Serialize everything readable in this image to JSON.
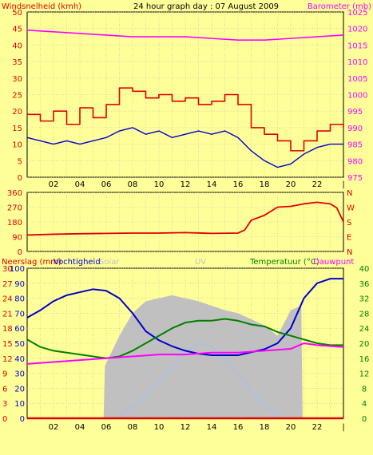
{
  "title": "24 hour graph day : 07 August 2009",
  "colors": {
    "background": "#FFFF99",
    "wind": "#E00000",
    "gust_line": "#0000CC",
    "barometer": "#FF00FF",
    "direction": "#E00000",
    "rain": "#E00000",
    "humidity": "#0000CC",
    "solar": "#C0C0C0",
    "uv": "#A0C0F0",
    "temperature": "#008000",
    "dewpoint": "#FF00FF",
    "left_axis": "#E00000",
    "humidity_axis": "#0000CC",
    "solar_label": "#C0C0C0",
    "uv_label": "#C0C0C0",
    "temp_axis": "#008000",
    "baro_axis": "#FF00FF"
  },
  "chart_data": [
    {
      "type": "line",
      "title": "24 hour graph day : 07 August 2009",
      "ylabel_left": "Windsnelheid (kmh)",
      "ylabel_right": "Barometer (mb)",
      "x_ticks": [
        "02",
        "04",
        "06",
        "08",
        "10",
        "12",
        "14",
        "16",
        "18",
        "20",
        "22"
      ],
      "y_ticks_left": [
        0,
        5,
        10,
        15,
        20,
        25,
        30,
        35,
        40,
        45,
        50
      ],
      "y_ticks_right": [
        975,
        980,
        985,
        990,
        995,
        1000,
        1005,
        1010,
        1015,
        1020,
        1025
      ],
      "ylim_left": [
        0,
        50
      ],
      "ylim_right": [
        975,
        1025
      ],
      "x_range": [
        0,
        24
      ],
      "series": [
        {
          "name": "Windsnelheid (kmh)",
          "axis": "left",
          "step": true,
          "x": [
            0,
            1,
            2,
            3,
            4,
            5,
            6,
            7,
            8,
            9,
            10,
            11,
            12,
            13,
            14,
            15,
            16,
            17,
            18,
            19,
            20,
            21,
            22,
            23,
            24
          ],
          "y": [
            19,
            17,
            20,
            16,
            21,
            18,
            22,
            27,
            26,
            24,
            25,
            23,
            24,
            22,
            23,
            25,
            22,
            15,
            13,
            11,
            8,
            11,
            14,
            16,
            15
          ]
        },
        {
          "name": "",
          "axis": "left",
          "x": [
            0,
            1,
            2,
            3,
            4,
            5,
            6,
            7,
            8,
            9,
            10,
            11,
            12,
            13,
            14,
            15,
            16,
            17,
            18,
            19,
            20,
            21,
            22,
            23,
            24
          ],
          "y": [
            12,
            11,
            10,
            11,
            10,
            11,
            12,
            14,
            15,
            13,
            14,
            12,
            13,
            14,
            13,
            14,
            12,
            8,
            5,
            3,
            4,
            7,
            9,
            10,
            10
          ]
        },
        {
          "name": "Barometer (mb)",
          "axis": "right",
          "x": [
            0,
            2,
            4,
            6,
            8,
            10,
            12,
            14,
            16,
            18,
            20,
            22,
            24
          ],
          "y": [
            1019.5,
            1019,
            1018.5,
            1018,
            1017.5,
            1017.5,
            1017.5,
            1017,
            1016.5,
            1016.5,
            1017,
            1017.5,
            1018
          ]
        }
      ]
    },
    {
      "type": "line",
      "title": "",
      "y_ticks_left": [
        0,
        90,
        180,
        270,
        360
      ],
      "y_ticks_right": [
        "N",
        "W",
        "S",
        "E",
        "N"
      ],
      "ylim_left": [
        0,
        360
      ],
      "x_range": [
        0,
        24
      ],
      "series": [
        {
          "name": "",
          "x": [
            0,
            2,
            4,
            6,
            8,
            10,
            12,
            14,
            16,
            16.5,
            17,
            18,
            19,
            20,
            21,
            22,
            23,
            23.5,
            24
          ],
          "y": [
            100,
            105,
            108,
            110,
            112,
            112,
            115,
            110,
            112,
            130,
            190,
            220,
            270,
            275,
            290,
            300,
            290,
            265,
            180
          ]
        }
      ]
    },
    {
      "type": "line",
      "title": "",
      "legend": [
        "Neerslag (mm)",
        "Vochtigheid",
        "Solar",
        "UV",
        "Temperatuur (°C)",
        "Dauwpunt"
      ],
      "x_ticks": [
        "02",
        "04",
        "06",
        "08",
        "10",
        "12",
        "14",
        "16",
        "18",
        "20",
        "22"
      ],
      "y_ticks_rain": [
        0,
        3,
        6,
        9,
        12,
        15,
        18,
        21,
        24,
        27,
        30
      ],
      "y_ticks_humidity": [
        0,
        10,
        20,
        30,
        40,
        50,
        60,
        70,
        80,
        90,
        100
      ],
      "y_ticks_temp": [
        0,
        4,
        8,
        12,
        16,
        20,
        24,
        28,
        32,
        36,
        40
      ],
      "ylim_rain": [
        0,
        30
      ],
      "ylim_humidity": [
        0,
        100
      ],
      "ylim_temp": [
        0,
        40
      ],
      "x_range": [
        0,
        24
      ],
      "series": [
        {
          "name": "Neerslag (mm)",
          "axis": "rain",
          "x": [
            0,
            24
          ],
          "y": [
            0,
            0
          ]
        },
        {
          "name": "Vochtigheid",
          "axis": "humidity",
          "x": [
            0,
            1,
            2,
            3,
            4,
            5,
            6,
            7,
            8,
            9,
            10,
            11,
            12,
            13,
            14,
            15,
            16,
            17,
            18,
            19,
            20,
            21,
            22,
            23,
            24
          ],
          "y": [
            67,
            72,
            78,
            82,
            84,
            86,
            85,
            80,
            70,
            58,
            52,
            48,
            45,
            43,
            42,
            42,
            42,
            44,
            46,
            50,
            60,
            80,
            90,
            93,
            93
          ]
        },
        {
          "name": "Solar",
          "axis": "humidity",
          "x": [
            0,
            5.8,
            5.9,
            7,
            8,
            9,
            10,
            11,
            12,
            13,
            14,
            15,
            16,
            17,
            18,
            19,
            20,
            20.8,
            20.9,
            24
          ],
          "y": [
            0,
            0,
            35,
            55,
            70,
            78,
            80,
            82,
            80,
            78,
            75,
            72,
            70,
            66,
            62,
            55,
            72,
            75,
            0,
            0
          ]
        },
        {
          "name": "UV",
          "axis": "humidity",
          "x": [
            7,
            8,
            9,
            10,
            11,
            12,
            13,
            14,
            15,
            16,
            17,
            18,
            19
          ],
          "y": [
            2,
            8,
            15,
            24,
            33,
            44,
            50,
            48,
            40,
            30,
            18,
            8,
            2
          ]
        },
        {
          "name": "Temperatuur (°C)",
          "axis": "temp",
          "x": [
            0,
            1,
            2,
            3,
            4,
            5,
            6,
            7,
            8,
            9,
            10,
            11,
            12,
            13,
            14,
            15,
            16,
            17,
            18,
            19,
            20,
            21,
            22,
            23,
            24
          ],
          "y": [
            21,
            19,
            18,
            17.5,
            17,
            16.5,
            16,
            16.5,
            18,
            20,
            22,
            24,
            25.5,
            26,
            26,
            26.5,
            26,
            25,
            24.5,
            23,
            22,
            21,
            20,
            19.5,
            19.5
          ]
        },
        {
          "name": "Dauwpunt",
          "axis": "temp",
          "x": [
            0,
            2,
            4,
            6,
            8,
            10,
            12,
            14,
            16,
            18,
            20,
            21,
            22,
            24
          ],
          "y": [
            14.5,
            15,
            15.5,
            16,
            16.5,
            17,
            17,
            17.5,
            17.5,
            18,
            18.5,
            20,
            19.5,
            19
          ]
        }
      ]
    }
  ]
}
